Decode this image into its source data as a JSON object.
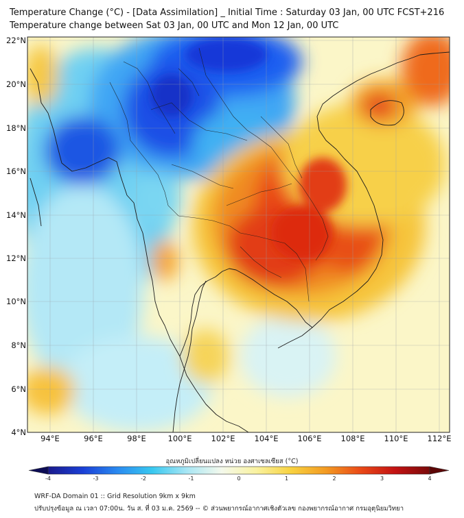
{
  "header": {
    "title_line1": "Temperature Change (°C) - [Data Assimilation] _ Initial Time : Saturday 03 Jan, 00 UTC FCST+216",
    "title_line2": "Temperature change between Sat 03 Jan, 00 UTC and Mon 12 Jan, 00 UTC"
  },
  "map": {
    "lon_range": [
      93,
      112.5
    ],
    "lat_range": [
      4,
      22.3
    ],
    "lat_labels": [
      "22°N",
      "20°N",
      "18°N",
      "16°N",
      "14°N",
      "12°N",
      "10°N",
      "8°N",
      "6°N",
      "4°N"
    ],
    "lon_labels": [
      "94°E",
      "96°E",
      "98°E",
      "100°E",
      "102°E",
      "104°E",
      "106°E",
      "108°E",
      "110°E",
      "112°E"
    ],
    "gridlines": true
  },
  "colorbar": {
    "title": "อุณหภูมิเปลี่ยนแปลง หน่วย องศาเซลเซียส (°C)",
    "min": -4,
    "max": 4,
    "ticks": [
      "-4",
      "-3",
      "-2",
      "-1",
      "0",
      "1",
      "2",
      "3",
      "4"
    ],
    "colors": [
      "#1a1a8c",
      "#1a3fd6",
      "#2a8af0",
      "#38c8f0",
      "#a8e6f4",
      "#f4f9ec",
      "#f9f2a0",
      "#f8d240",
      "#f39b22",
      "#ea4a17",
      "#c31212",
      "#7a0a0a"
    ]
  },
  "footer": {
    "line1": "WRF-DA Domain 01 :: Grid Resolution 9km x 9km",
    "line2": "ปรับปรุงข้อมูล ณ เวลา 07:00น. วัน ส. ที่ 03 ม.ค. 2569 -- © ส่วนพยากรณ์อากาศเชิงตัวเลข กองพยากรณ์อากาศ กรมอุตุนิยมวิทยา"
  }
}
